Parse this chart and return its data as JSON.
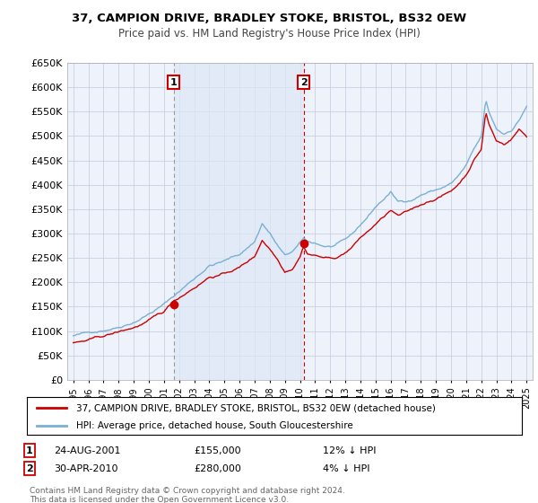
{
  "title": "37, CAMPION DRIVE, BRADLEY STOKE, BRISTOL, BS32 0EW",
  "subtitle": "Price paid vs. HM Land Registry's House Price Index (HPI)",
  "ylim": [
    0,
    650000
  ],
  "yticks": [
    0,
    50000,
    100000,
    150000,
    200000,
    250000,
    300000,
    350000,
    400000,
    450000,
    500000,
    550000,
    600000,
    650000
  ],
  "sale1_date": 2001.65,
  "sale1_price": 155000,
  "sale1_label": "1",
  "sale2_date": 2010.25,
  "sale2_price": 280000,
  "sale2_label": "2",
  "hpi_color": "#7ab0d4",
  "house_color": "#cc0000",
  "vline1_color": "#999999",
  "vline2_color": "#cc0000",
  "shade_color": "#dce8f5",
  "annotation_bg": "white",
  "annotation_border": "#cc0000",
  "legend_label1": "37, CAMPION DRIVE, BRADLEY STOKE, BRISTOL, BS32 0EW (detached house)",
  "legend_label2": "HPI: Average price, detached house, South Gloucestershire",
  "copyright": "Contains HM Land Registry data © Crown copyright and database right 2024.\nThis data is licensed under the Open Government Licence v3.0.",
  "background_color": "#ffffff",
  "plot_bg_color": "#eef2fa",
  "grid_color": "#c8d0e0",
  "xlim_left": 1994.6,
  "xlim_right": 2025.4
}
